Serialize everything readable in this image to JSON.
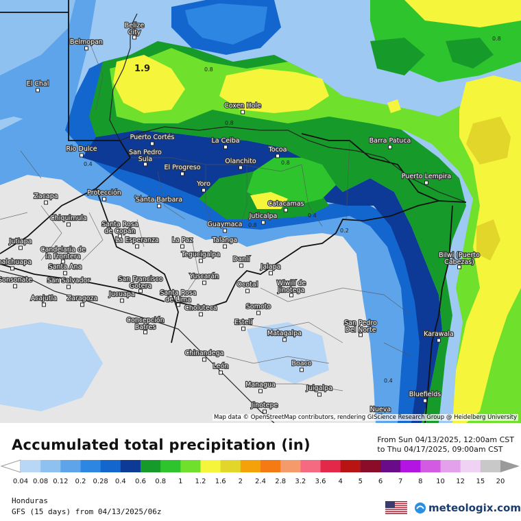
{
  "map": {
    "cities": [
      {
        "name": "Belize City"
      },
      {
        "name": "Belmopan"
      },
      {
        "name": "El Chal"
      },
      {
        "name": "Coxen Hole"
      },
      {
        "name": "Puerto Cortés"
      },
      {
        "name": "La Ceiba"
      },
      {
        "name": "Tocoa"
      },
      {
        "name": "Barra Patuca"
      },
      {
        "name": "Rio Dulce"
      },
      {
        "name": "San Pedro Sula"
      },
      {
        "name": "El Progreso"
      },
      {
        "name": "Olanchito"
      },
      {
        "name": "Puerto Lempira"
      },
      {
        "name": "Yoro"
      },
      {
        "name": "Zacapa"
      },
      {
        "name": "Protección"
      },
      {
        "name": "Santa Barbara"
      },
      {
        "name": "Catacamas"
      },
      {
        "name": "Juticalpa"
      },
      {
        "name": "Chiquimula"
      },
      {
        "name": "Santa Rosa de Copán"
      },
      {
        "name": "Guaymaca"
      },
      {
        "name": "Jutiapa"
      },
      {
        "name": "La Esperanza"
      },
      {
        "name": "La Paz"
      },
      {
        "name": "Talanga"
      },
      {
        "name": "Candelaria de la Frontera"
      },
      {
        "name": "Bilwi (Puerto Cabezas)"
      },
      {
        "name": "Tegucigalpa"
      },
      {
        "name": "Danlí"
      },
      {
        "name": "Chalchuapa"
      },
      {
        "name": "Santa Ana"
      },
      {
        "name": "Sonsonate"
      },
      {
        "name": "San Salvador"
      },
      {
        "name": "San Francisco Gotera"
      },
      {
        "name": "Yuscarán"
      },
      {
        "name": "Jalapa"
      },
      {
        "name": "Wiwilí de Jinotega"
      },
      {
        "name": "Acajutla"
      },
      {
        "name": "Zaragoza"
      },
      {
        "name": "Jucuapa"
      },
      {
        "name": "Santa Rosa de Lima"
      },
      {
        "name": "Ocotal"
      },
      {
        "name": "Somoto"
      },
      {
        "name": "Concepción Batres"
      },
      {
        "name": "Choluteca"
      },
      {
        "name": "Estelí"
      },
      {
        "name": "San Pedro Del Norte"
      },
      {
        "name": "Matagalpa"
      },
      {
        "name": "Karawala"
      },
      {
        "name": "Chinandega"
      },
      {
        "name": "León"
      },
      {
        "name": "Boaco"
      },
      {
        "name": "Bluefields"
      },
      {
        "name": "Managua"
      },
      {
        "name": "Juigalpa"
      },
      {
        "name": "Jinotepe"
      },
      {
        "name": "Nueva"
      }
    ],
    "contour_labels": [
      "1.9",
      "0.8",
      "0.8",
      "0.8",
      "0.4",
      "0.8",
      "0.8",
      "0.4",
      "0.4",
      "0.2",
      "0.4"
    ]
  },
  "attribution": "Map data © OpenStreetMap contributors, rendering GIScience Research Group @ Heidelberg University",
  "title": "Accumulated total precipitation (in)",
  "dates": {
    "from": "From Sun 04/13/2025, 12:00am CST",
    "to": "to Thu 04/17/2025, 09:00am CST"
  },
  "colorbar": {
    "colors": [
      "#b8d6f5",
      "#8ec1f0",
      "#5ea4ea",
      "#2e86e3",
      "#1466cf",
      "#0c3a96",
      "#169a2a",
      "#2ec42e",
      "#6fe02c",
      "#f5f53c",
      "#e3d62a",
      "#f5a20a",
      "#f57a14",
      "#f59a6a",
      "#f56a80",
      "#e3284a",
      "#b81414",
      "#8a0c28",
      "#6a0c8a",
      "#b414e3",
      "#d35ae3",
      "#e3a0eb",
      "#f0d2f5",
      "#c8c8c8"
    ],
    "ticks": [
      "0.04",
      "0.08",
      "0.12",
      "0.2",
      "0.28",
      "0.4",
      "0.6",
      "0.8",
      "1",
      "1.2",
      "1.6",
      "2",
      "2.4",
      "2.8",
      "3.2",
      "3.6",
      "4",
      "5",
      "6",
      "7",
      "8",
      "10",
      "12",
      "15",
      "20"
    ]
  },
  "region": "Honduras",
  "model": "GFS (15 days) from 04/13/2025/06z",
  "brand": "meteologix.com"
}
